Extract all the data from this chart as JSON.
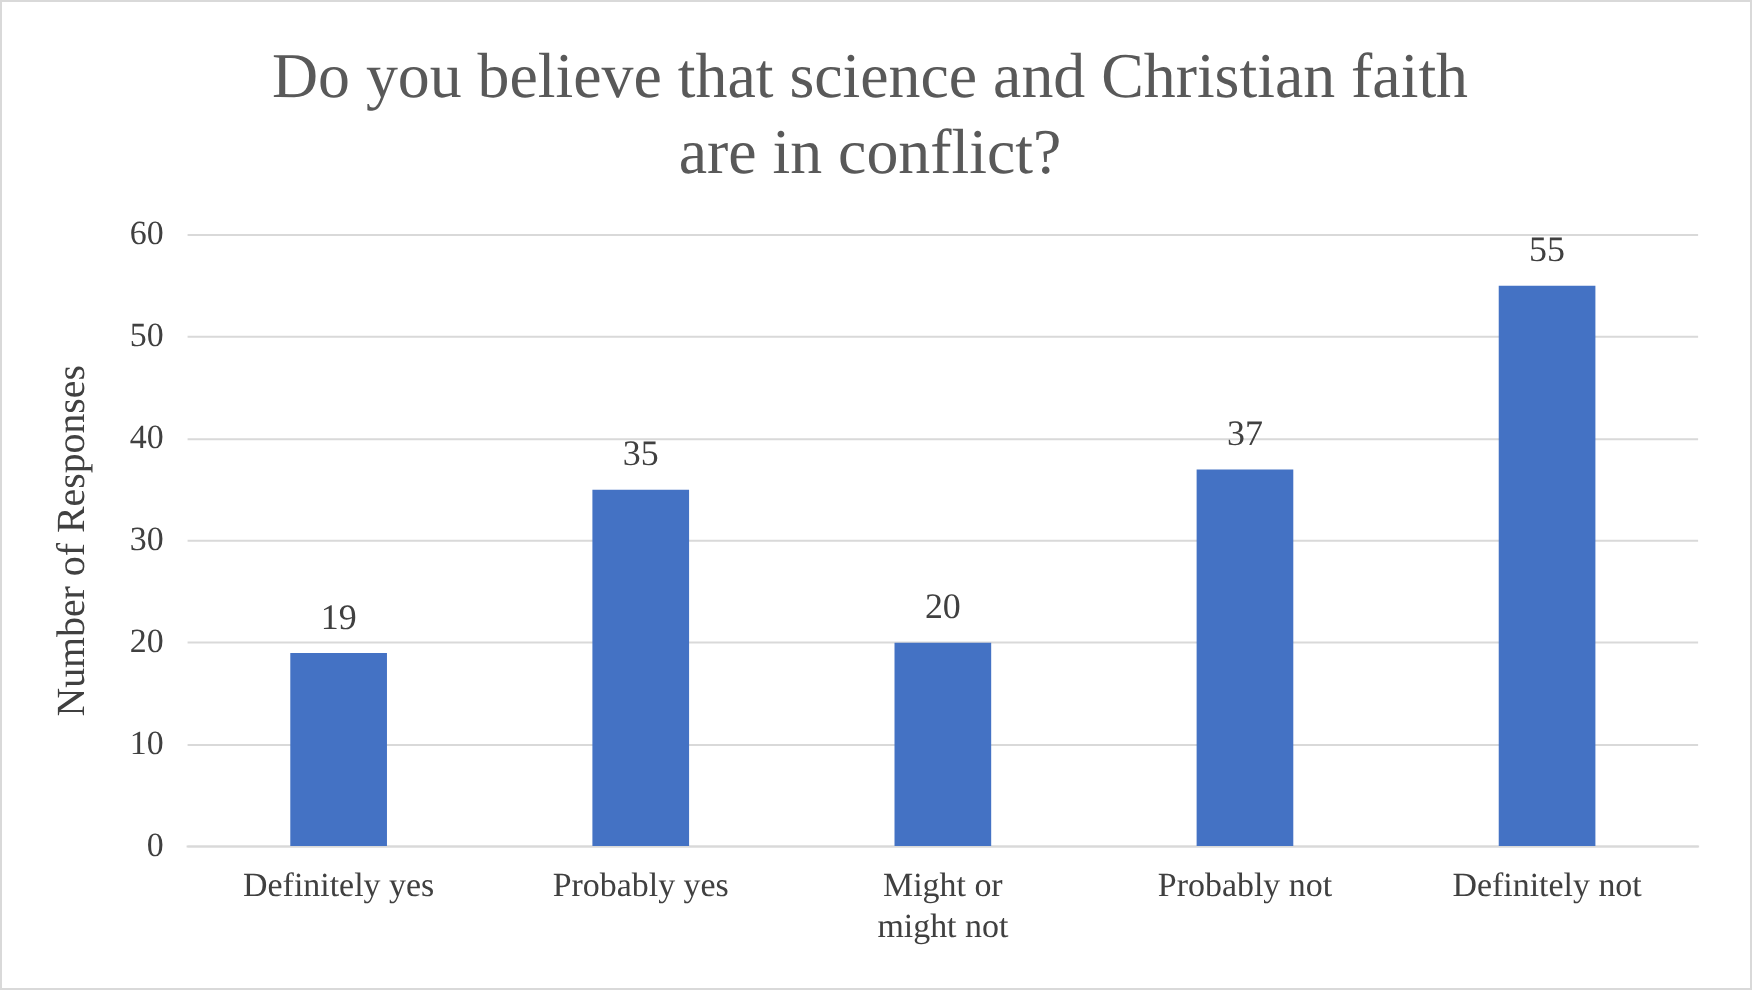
{
  "chart_data": {
    "type": "bar",
    "title": "Do you believe that science and Christian faith are in conflict?",
    "ylabel": "Number of Responses",
    "categories": [
      "Definitely yes",
      "Probably yes",
      "Might or might not",
      "Probably not",
      "Definitely not"
    ],
    "values": [
      19,
      35,
      20,
      37,
      55
    ],
    "color": "#4472c4",
    "ylim": [
      0,
      60
    ],
    "yticks": [
      0,
      10,
      20,
      30,
      40,
      50,
      60
    ],
    "grid": "y",
    "data_labels": true,
    "legend": false
  }
}
